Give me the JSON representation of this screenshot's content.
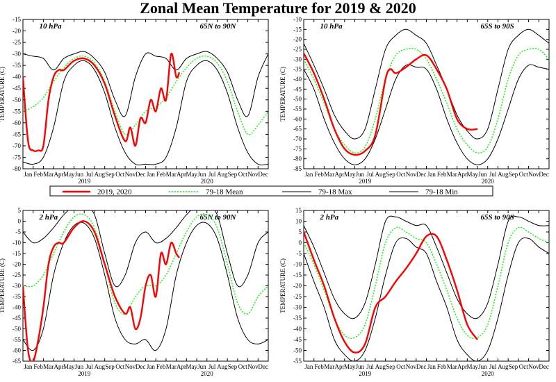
{
  "title": "Zonal Mean Temperature for 2019 & 2020",
  "months": [
    "Jan",
    "Feb",
    "Mar",
    "Apr",
    "May",
    "Jun",
    "Jul",
    "Aug",
    "Sep",
    "Oct",
    "Nov",
    "Dec"
  ],
  "years": [
    "2019",
    "2020"
  ],
  "legend": [
    {
      "label": "2019, 2020",
      "color": "#ff0000",
      "style": "solid-thick"
    },
    {
      "label": "79-18 Mean",
      "color": "#00ff00",
      "style": "dotted"
    },
    {
      "label": "79-18 Max",
      "color": "#000000",
      "style": "solid"
    },
    {
      "label": "79-18 Min",
      "color": "#000000",
      "style": "solid"
    }
  ],
  "chart_data": [
    {
      "type": "line",
      "level": "10 hPa",
      "region": "65N to 90N",
      "ylabel": "TEMPERATURE (C)",
      "ylim": [
        -80,
        -15
      ],
      "yticks": [
        -80,
        -75,
        -70,
        -65,
        -60,
        -55,
        -50,
        -45,
        -40,
        -35,
        -30,
        -25,
        -20,
        -15
      ],
      "x_unit": "month index from Jan 2019",
      "series": [
        {
          "name": "79-18 Mean",
          "x": [
            0,
            1,
            2,
            3,
            4,
            5,
            6,
            7,
            8,
            9,
            10,
            11,
            12
          ],
          "y": [
            -55,
            -53,
            -49,
            -42,
            -36,
            -32,
            -31,
            -34,
            -42,
            -55,
            -65,
            -61,
            -55
          ]
        },
        {
          "name": "79-18 Max",
          "x": [
            0,
            1,
            2,
            3,
            4,
            5,
            6,
            7,
            8,
            9,
            10,
            11,
            12
          ],
          "y": [
            -30,
            -31,
            -32,
            -37,
            -32,
            -30,
            -29,
            -32,
            -38,
            -50,
            -57,
            -40,
            -30
          ]
        },
        {
          "name": "79-18 Min",
          "x": [
            0,
            1,
            2,
            3,
            4,
            5,
            6,
            7,
            8,
            9,
            10,
            11,
            12
          ],
          "y": [
            -77,
            -78,
            -75,
            -62,
            -42,
            -35,
            -33,
            -37,
            -47,
            -62,
            -73,
            -78,
            -78
          ]
        },
        {
          "name": "2019, 2020",
          "x": [
            0,
            0.5,
            1,
            1.5,
            2,
            2.5,
            3,
            3.5,
            4,
            5,
            6,
            7,
            8,
            9,
            10,
            10.5,
            11,
            11.5,
            12,
            12.5,
            13,
            13.5,
            14,
            14.5,
            15,
            15.3
          ],
          "y": [
            -40,
            -68,
            -72,
            -72,
            -70,
            -50,
            -40,
            -37,
            -37,
            -33,
            -32,
            -35,
            -43,
            -57,
            -68,
            -62,
            -70,
            -58,
            -60,
            -50,
            -55,
            -45,
            -50,
            -30,
            -40,
            -38
          ]
        }
      ]
    },
    {
      "type": "line",
      "level": "10 hPa",
      "region": "65S to 90S",
      "ylabel": "TEMPERATURE (C)",
      "ylim": [
        -85,
        -10
      ],
      "yticks": [
        -85,
        -80,
        -75,
        -70,
        -65,
        -60,
        -55,
        -50,
        -45,
        -40,
        -35,
        -30,
        -25,
        -20,
        -15,
        -10
      ],
      "x_unit": "month index from Jan 2019",
      "series": [
        {
          "name": "79-18 Mean",
          "x": [
            0,
            1,
            2,
            3,
            4,
            5,
            6,
            7,
            8,
            9,
            10,
            11,
            12
          ],
          "y": [
            -30,
            -40,
            -52,
            -65,
            -73,
            -77,
            -74,
            -60,
            -40,
            -28,
            -25,
            -25,
            -30
          ]
        },
        {
          "name": "79-18 Max",
          "x": [
            0,
            1,
            2,
            3,
            4,
            5,
            6,
            7,
            8,
            9,
            10,
            11,
            12
          ],
          "y": [
            -22,
            -33,
            -45,
            -58,
            -66,
            -70,
            -65,
            -45,
            -25,
            -18,
            -15,
            -18,
            -22
          ]
        },
        {
          "name": "79-18 Min",
          "x": [
            0,
            1,
            2,
            3,
            4,
            5,
            6,
            7,
            8,
            9,
            10,
            11,
            12
          ],
          "y": [
            -35,
            -45,
            -60,
            -72,
            -80,
            -83,
            -80,
            -70,
            -55,
            -40,
            -33,
            -34,
            -35
          ]
        },
        {
          "name": "2019, 2020",
          "x": [
            0,
            1,
            2,
            3,
            4,
            5,
            6,
            7,
            8,
            8.5,
            9,
            10,
            11,
            12,
            13,
            14,
            15,
            16,
            17
          ],
          "y": [
            -27,
            -37,
            -50,
            -65,
            -75,
            -78,
            -76,
            -68,
            -40,
            -35,
            -37,
            -34,
            -30,
            -28,
            -35,
            -45,
            -60,
            -65,
            -65
          ]
        }
      ]
    },
    {
      "type": "line",
      "level": "2 hPa",
      "region": "65N to 90N",
      "ylabel": "TEMPERATURE (C)",
      "ylim": [
        -65,
        5
      ],
      "yticks": [
        -65,
        -60,
        -55,
        -50,
        -45,
        -40,
        -35,
        -30,
        -25,
        -20,
        -15,
        -10,
        -5,
        0,
        5
      ],
      "x_unit": "month index from Jan 2019",
      "series": [
        {
          "name": "79-18 Mean",
          "x": [
            0,
            1,
            2,
            3,
            4,
            5,
            6,
            7,
            8,
            9,
            10,
            11,
            12
          ],
          "y": [
            -30,
            -30,
            -25,
            -15,
            -5,
            2,
            3,
            -3,
            -20,
            -38,
            -43,
            -35,
            -30
          ]
        },
        {
          "name": "79-18 Max",
          "x": [
            0,
            1,
            2,
            3,
            4,
            5,
            6,
            7,
            8,
            9,
            10,
            11,
            12
          ],
          "y": [
            -5,
            -10,
            -8,
            -3,
            3,
            7,
            7,
            3,
            -15,
            -30,
            -25,
            -10,
            -5
          ]
        },
        {
          "name": "79-18 Min",
          "x": [
            0,
            1,
            2,
            3,
            4,
            5,
            6,
            7,
            8,
            9,
            10,
            11,
            12
          ],
          "y": [
            -55,
            -60,
            -50,
            -25,
            -10,
            -2,
            -1,
            -8,
            -25,
            -45,
            -55,
            -57,
            -55
          ]
        },
        {
          "name": "2019, 2020",
          "x": [
            0,
            0.5,
            1,
            1.5,
            2,
            2.5,
            3,
            3.5,
            4,
            5,
            6,
            7,
            8,
            9,
            10,
            10.5,
            11,
            11.5,
            12,
            12.5,
            13,
            13.5,
            14,
            14.5,
            15,
            15.3
          ],
          "y": [
            -30,
            -60,
            -65,
            -55,
            -40,
            -20,
            -12,
            -10,
            -10,
            -3,
            0,
            -5,
            -20,
            -35,
            -43,
            -40,
            -50,
            -45,
            -30,
            -25,
            -35,
            -15,
            -20,
            -10,
            -15,
            -17
          ]
        }
      ]
    },
    {
      "type": "line",
      "level": "2 hPa",
      "region": "65S to 90S",
      "ylabel": "TEMPERATURE (C)",
      "ylim": [
        -55,
        15
      ],
      "yticks": [
        -55,
        -50,
        -45,
        -40,
        -35,
        -30,
        -25,
        -20,
        -15,
        -10,
        -5,
        0,
        5,
        10,
        15
      ],
      "x_unit": "month index from Jan 2019",
      "series": [
        {
          "name": "79-18 Mean",
          "x": [
            0,
            1,
            2,
            3,
            4,
            5,
            6,
            7,
            8,
            9,
            10,
            11,
            12
          ],
          "y": [
            0,
            -10,
            -22,
            -35,
            -43,
            -44,
            -38,
            -20,
            0,
            7,
            5,
            2,
            0
          ]
        },
        {
          "name": "79-18 Max",
          "x": [
            0,
            1,
            2,
            3,
            4,
            5,
            6,
            7,
            8,
            9,
            10,
            11,
            12
          ],
          "y": [
            8,
            -2,
            -14,
            -26,
            -33,
            -35,
            -28,
            -10,
            10,
            12,
            10,
            8,
            8
          ]
        },
        {
          "name": "79-18 Min",
          "x": [
            0,
            1,
            2,
            3,
            4,
            5,
            6,
            7,
            8,
            9,
            10,
            11,
            12
          ],
          "y": [
            -5,
            -18,
            -30,
            -45,
            -52,
            -55,
            -50,
            -35,
            -15,
            0,
            2,
            -2,
            -5
          ]
        },
        {
          "name": "2019, 2020",
          "x": [
            0,
            1,
            2,
            3,
            4,
            5,
            6,
            7,
            8,
            9,
            10,
            11,
            12,
            13,
            14,
            15,
            16,
            17
          ],
          "y": [
            5,
            -8,
            -20,
            -35,
            -46,
            -51,
            -47,
            -30,
            -25,
            -18,
            -12,
            -5,
            3,
            3,
            -8,
            -22,
            -38,
            -45
          ]
        }
      ]
    }
  ]
}
